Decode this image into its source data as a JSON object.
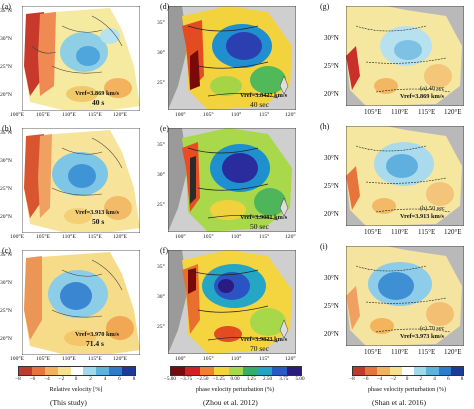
{
  "panels": {
    "left": [
      {
        "label": "(a)",
        "vref": "Vref=3.869 km/s",
        "period": "40 s",
        "ylabels": [
          "35°N",
          "30°N",
          "25°N",
          "20°N"
        ]
      },
      {
        "label": "(b)",
        "vref": "Vref=3.913 km/s",
        "period": "50 s",
        "ylabels": [
          "35°N",
          "30°N",
          "25°N",
          "20°N"
        ]
      },
      {
        "label": "(c)",
        "vref": "Vref=3.970 km/s",
        "period": "71.4 s",
        "ylabels": [
          "35°N",
          "30°N",
          "25°N",
          "20°N"
        ]
      }
    ],
    "left_xlabels": [
      "100°E",
      "105°E",
      "110°E",
      "115°E",
      "120°E"
    ],
    "middle": [
      {
        "label": "(d)",
        "vref": "Vref=3.8427 km/s",
        "period": "40 sec"
      },
      {
        "label": "(e)",
        "vref": "Vref=3.9081 km/s",
        "period": "50 sec"
      },
      {
        "label": "(f)",
        "vref": "Vref=3.9823 km/s",
        "period": "70 sec"
      }
    ],
    "middle_xlabels": [
      "100°",
      "105°",
      "110°",
      "115°",
      "120°"
    ],
    "middle_ylabels": [
      "35°",
      "30°",
      "25°"
    ],
    "right": [
      {
        "label": "(g)",
        "vref": "Vref=3.869 km/s",
        "period": "(a) 40 sec"
      },
      {
        "label": "(h)",
        "vref": "Vref=3.913 km/s",
        "period": "(b) 50 sec"
      },
      {
        "label": "(i)",
        "vref": "Vref=3.973 km/s",
        "period": "(c) 70 sec"
      }
    ],
    "right_xlabels": [
      "105°E",
      "110°E",
      "115°E",
      "120°E"
    ],
    "right_ylabels": [
      "30°N",
      "25°N",
      "20°N"
    ]
  },
  "colorbars": {
    "left": {
      "ticks": [
        "−8",
        "−6",
        "−4",
        "−2",
        "0",
        "2",
        "4",
        "6",
        "8"
      ],
      "label": "Relative velocity [%]",
      "colors": [
        "#c0392b",
        "#e8743b",
        "#f3b259",
        "#f7e08a",
        "#ffffff",
        "#9fd9ea",
        "#5bb3e0",
        "#2b7bd0",
        "#1c3a9a"
      ]
    },
    "middle": {
      "ticks": [
        "−5.00",
        "−3.75",
        "−2.50",
        "−1.25",
        "0.00",
        "1.25",
        "2.50",
        "3.75",
        "5.00"
      ],
      "label": "phase velocity perturbation (%)",
      "colors": [
        "#7a0a0a",
        "#d21f1f",
        "#f08030",
        "#f4d23a",
        "#a6d848",
        "#32b06a",
        "#1fa6c5",
        "#2858c9",
        "#2a1b80"
      ]
    },
    "right": {
      "ticks": [
        "−8",
        "−6",
        "−4",
        "−2",
        "0",
        "2",
        "4",
        "6",
        "8"
      ],
      "label": "phase velocity perturbation (%)",
      "colors": [
        "#c0392b",
        "#e8743b",
        "#f3b259",
        "#f7e08a",
        "#ffffff",
        "#9fd9ea",
        "#5bb3e0",
        "#2b7bd0",
        "#1c3a9a"
      ]
    }
  },
  "captions": {
    "left": "(This study)",
    "middle": "(Zhou et al. 2012)",
    "right": "(Shan et al. 2016)"
  }
}
